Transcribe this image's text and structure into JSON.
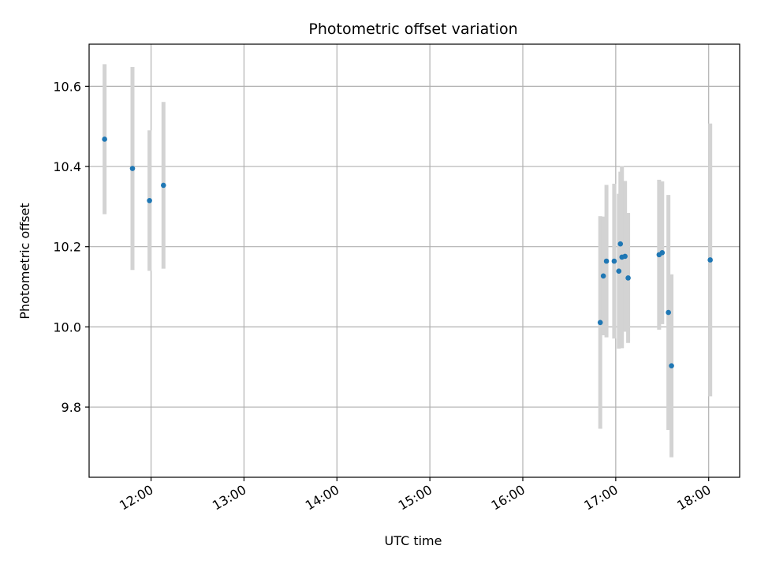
{
  "chart_data": {
    "type": "scatter",
    "title": "Photometric offset variation",
    "xlabel": "UTC time",
    "ylabel": "Photometric offset",
    "x_scale": "time",
    "xlim": [
      "11:20",
      "18:20"
    ],
    "ylim": [
      9.625,
      10.705
    ],
    "x_ticks": [
      "12:00",
      "13:00",
      "14:00",
      "15:00",
      "16:00",
      "17:00",
      "18:00"
    ],
    "y_ticks": [
      9.8,
      10.0,
      10.2,
      10.4,
      10.6
    ],
    "y_tick_labels": [
      "9.8",
      "10.0",
      "10.2",
      "10.4",
      "10.6"
    ],
    "grid": true,
    "legend": "none",
    "marker_color": "#1f77b4",
    "errorbar_color": "#d3d3d3",
    "series": [
      {
        "points": [
          {
            "x": "11:30",
            "y": 10.468,
            "err": 0.187
          },
          {
            "x": "11:48",
            "y": 10.395,
            "err": 0.253
          },
          {
            "x": "11:59",
            "y": 10.315,
            "err": 0.175
          },
          {
            "x": "12:08",
            "y": 10.353,
            "err": 0.208
          },
          {
            "x": "16:50",
            "y": 10.011,
            "err": 0.265
          },
          {
            "x": "16:52",
            "y": 10.127,
            "err": 0.148
          },
          {
            "x": "16:54",
            "y": 10.164,
            "err": 0.19
          },
          {
            "x": "16:59",
            "y": 10.164,
            "err": 0.193
          },
          {
            "x": "17:02",
            "y": 10.139,
            "err": 0.193
          },
          {
            "x": "17:03",
            "y": 10.207,
            "err": 0.18
          },
          {
            "x": "17:04",
            "y": 10.174,
            "err": 0.227
          },
          {
            "x": "17:06",
            "y": 10.176,
            "err": 0.188
          },
          {
            "x": "17:08",
            "y": 10.122,
            "err": 0.162
          },
          {
            "x": "17:28",
            "y": 10.18,
            "err": 0.187
          },
          {
            "x": "17:30",
            "y": 10.185,
            "err": 0.178
          },
          {
            "x": "17:34",
            "y": 10.036,
            "err": 0.293
          },
          {
            "x": "17:36",
            "y": 9.903,
            "err": 0.228
          },
          {
            "x": "18:01",
            "y": 10.167,
            "err": 0.34
          }
        ]
      }
    ]
  }
}
